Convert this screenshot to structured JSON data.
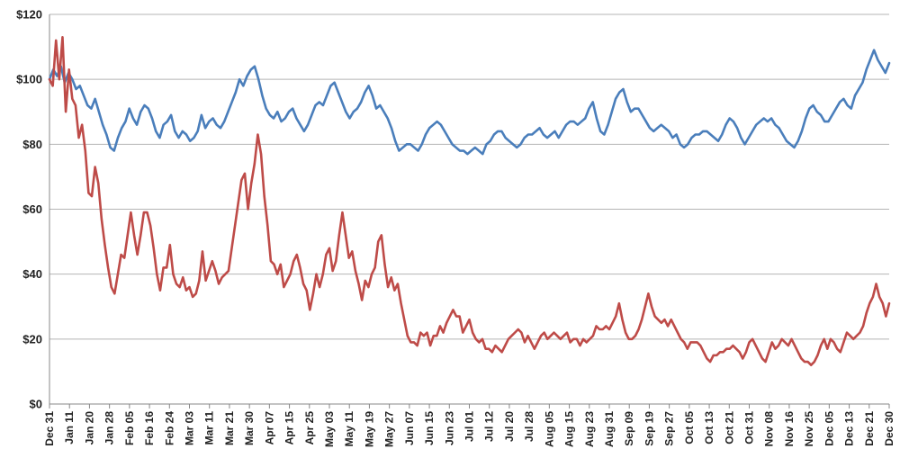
{
  "chart_data": {
    "type": "line",
    "title": "",
    "xlabel": "",
    "ylabel": "",
    "ylim": [
      0,
      120
    ],
    "y_ticks": [
      "$0",
      "$20",
      "$40",
      "$60",
      "$80",
      "$100",
      "$120"
    ],
    "grid": true,
    "legend": "none",
    "x_tick_labels": [
      "Dec 31",
      "Jan 11",
      "Jan 20",
      "Jan 28",
      "Feb 05",
      "Feb 16",
      "Feb 24",
      "Mar 03",
      "Mar 11",
      "Mar 21",
      "Mar 30",
      "Apr 07",
      "Apr 15",
      "Apr 25",
      "May 03",
      "May 11",
      "May 19",
      "May 27",
      "Jun 07",
      "Jun 15",
      "Jun 23",
      "Jul 01",
      "Jul 12",
      "Jul 20",
      "Jul 28",
      "Aug 05",
      "Aug 15",
      "Aug 23",
      "Aug 31",
      "Sep 09",
      "Sep 19",
      "Sep 27",
      "Oct 05",
      "Oct 13",
      "Oct 21",
      "Oct 31",
      "Nov 08",
      "Nov 16",
      "Nov 25",
      "Dec 05",
      "Dec 13",
      "Dec 21",
      "Dec 30"
    ],
    "series": [
      {
        "color": "#4a7ebb",
        "values": [
          100,
          103,
          101,
          104,
          99,
          102,
          100,
          97,
          98,
          95,
          92,
          91,
          94,
          90,
          86,
          83,
          79,
          78,
          82,
          85,
          87,
          91,
          88,
          86,
          90,
          92,
          91,
          88,
          84,
          82,
          86,
          87,
          89,
          84,
          82,
          84,
          83,
          81,
          82,
          84,
          89,
          85,
          87,
          88,
          86,
          85,
          87,
          90,
          93,
          96,
          100,
          98,
          101,
          103,
          104,
          100,
          95,
          91,
          89,
          88,
          90,
          87,
          88,
          90,
          91,
          88,
          86,
          84,
          86,
          89,
          92,
          93,
          92,
          95,
          98,
          99,
          96,
          93,
          90,
          88,
          90,
          91,
          93,
          96,
          98,
          95,
          91,
          92,
          90,
          88,
          85,
          81,
          78,
          79,
          80,
          80,
          79,
          78,
          80,
          83,
          85,
          86,
          87,
          86,
          84,
          82,
          80,
          79,
          78,
          78,
          77,
          78,
          79,
          78,
          77,
          80,
          81,
          83,
          84,
          84,
          82,
          81,
          80,
          79,
          80,
          82,
          83,
          83,
          84,
          85,
          83,
          82,
          83,
          84,
          82,
          84,
          86,
          87,
          87,
          86,
          87,
          88,
          91,
          93,
          88,
          84,
          83,
          86,
          90,
          94,
          96,
          97,
          93,
          90,
          91,
          91,
          89,
          87,
          85,
          84,
          85,
          86,
          85,
          84,
          82,
          83,
          80,
          79,
          80,
          82,
          83,
          83,
          84,
          84,
          83,
          82,
          81,
          83,
          86,
          88,
          87,
          85,
          82,
          80,
          82,
          84,
          86,
          87,
          88,
          87,
          88,
          86,
          85,
          83,
          81,
          80,
          79,
          81,
          84,
          88,
          91,
          92,
          90,
          89,
          87,
          87,
          89,
          91,
          93,
          94,
          92,
          91,
          95,
          97,
          99,
          103,
          106,
          109,
          106,
          104,
          102,
          105
        ]
      },
      {
        "color": "#be4b48",
        "values": [
          100,
          98,
          112,
          100,
          113,
          90,
          103,
          94,
          92,
          82,
          86,
          78,
          65,
          64,
          73,
          68,
          57,
          49,
          42,
          36,
          34,
          40,
          46,
          45,
          52,
          59,
          52,
          46,
          52,
          59,
          59,
          55,
          48,
          40,
          35,
          42,
          42,
          49,
          40,
          37,
          36,
          39,
          35,
          36,
          33,
          34,
          38,
          47,
          38,
          41,
          44,
          41,
          37,
          39,
          40,
          41,
          48,
          55,
          62,
          69,
          71,
          60,
          68,
          74,
          83,
          77,
          64,
          55,
          44,
          43,
          40,
          43,
          36,
          38,
          40,
          44,
          46,
          42,
          37,
          35,
          29,
          34,
          40,
          36,
          40,
          46,
          48,
          41,
          44,
          52,
          59,
          52,
          45,
          47,
          41,
          37,
          32,
          38,
          36,
          40,
          42,
          50,
          52,
          43,
          36,
          39,
          35,
          37,
          31,
          26,
          21,
          19,
          19,
          18,
          22,
          21,
          22,
          18,
          21,
          21,
          24,
          22,
          25,
          27,
          29,
          27,
          27,
          22,
          24,
          26,
          22,
          20,
          19,
          20,
          17,
          17,
          16,
          18,
          17,
          16,
          18,
          20,
          21,
          22,
          23,
          22,
          19,
          21,
          19,
          17,
          19,
          21,
          22,
          20,
          21,
          22,
          21,
          20,
          21,
          22,
          19,
          20,
          20,
          18,
          20,
          19,
          20,
          21,
          24,
          23,
          23,
          24,
          23,
          25,
          27,
          31,
          26,
          22,
          20,
          20,
          21,
          23,
          26,
          30,
          34,
          30,
          27,
          26,
          25,
          26,
          24,
          26,
          24,
          22,
          20,
          19,
          17,
          19,
          19,
          19,
          18,
          16,
          14,
          13,
          15,
          15,
          16,
          16,
          17,
          17,
          18,
          17,
          16,
          14,
          16,
          19,
          20,
          18,
          16,
          14,
          13,
          16,
          19,
          17,
          18,
          20,
          19,
          18,
          20,
          18,
          16,
          14,
          13,
          13,
          12,
          13,
          15,
          18,
          20,
          17,
          20,
          19,
          17,
          16,
          19,
          22,
          21,
          20,
          21,
          22,
          24,
          28,
          31,
          33,
          37,
          33,
          31,
          27,
          31
        ]
      }
    ]
  }
}
